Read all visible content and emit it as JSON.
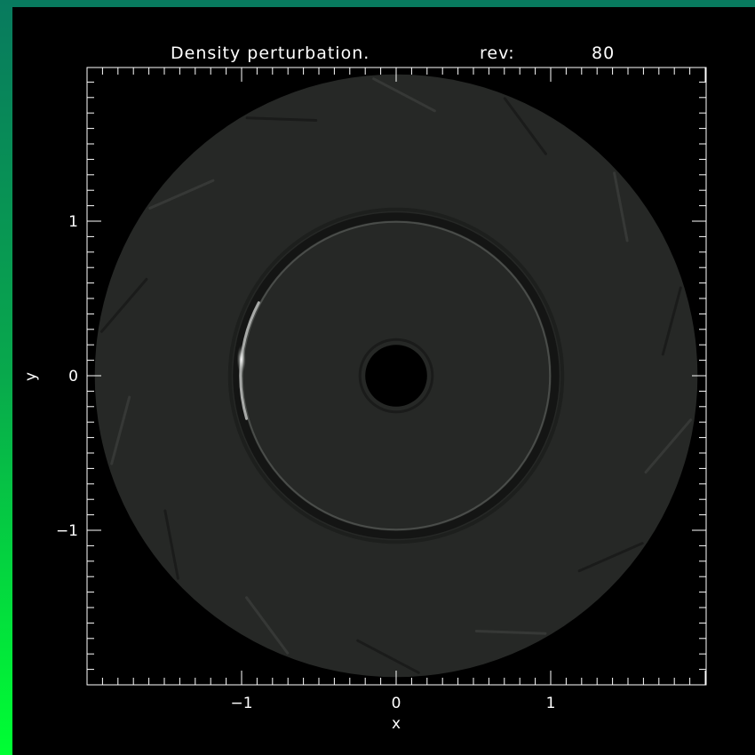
{
  "chart_data": {
    "type": "heatmap",
    "title": "Density perturbation.",
    "rev_label": "rev:",
    "rev_value": "80",
    "xlabel": "x",
    "ylabel": "y",
    "xlim": [
      -2.0,
      2.0
    ],
    "ylim": [
      -2.0,
      2.0
    ],
    "xticks": [
      -1,
      0,
      1
    ],
    "yticks": [
      -1,
      0,
      1
    ],
    "xtick_labels": [
      "−1",
      "0",
      "1"
    ],
    "ytick_labels": [
      "−1",
      "0",
      "1"
    ],
    "minor_tick_step": 0.1,
    "grid": false,
    "disk": {
      "outer_radius": 1.95,
      "inner_radius": 0.2,
      "gap_ring_radius": 1.03,
      "hotspot_angle_deg": 174,
      "background_color": "#262826",
      "ring_dark_color": "#141514",
      "ring_light_color": "#4a4d4a",
      "hotspot_color": "#ffffff"
    },
    "colors": {
      "background": "#000000",
      "axes": "#ffffff",
      "frame_top": "#087a5e",
      "frame_left_bottom": "#00ff33"
    }
  }
}
